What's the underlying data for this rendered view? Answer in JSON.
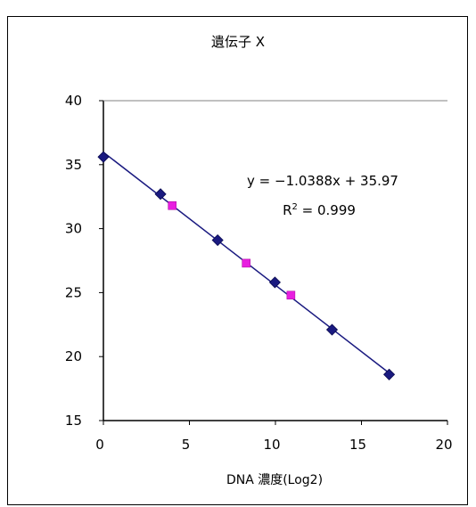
{
  "chart_data": {
    "type": "scatter",
    "title": "遺伝子 X",
    "xlabel": "DNA 濃度(Log2)",
    "ylabel": "",
    "xlim": [
      0,
      20
    ],
    "ylim": [
      15,
      40
    ],
    "xticks": [
      "0",
      "5",
      "10",
      "15",
      "20"
    ],
    "yticks": [
      "15",
      "20",
      "25",
      "30",
      "35",
      "40"
    ],
    "series": [
      {
        "marker": "diamond",
        "color": "#1a1a80",
        "x": [
          0.0,
          3.32,
          6.64,
          9.97,
          13.29,
          16.61
        ],
        "y": [
          35.6,
          32.7,
          29.1,
          25.8,
          22.1,
          18.6
        ]
      },
      {
        "marker": "square",
        "color": "#e81ee0",
        "x": [
          4.0,
          8.3,
          10.9
        ],
        "y": [
          31.8,
          27.3,
          24.8
        ]
      }
    ],
    "trendline": {
      "slope": -1.0388,
      "intercept": 35.97,
      "x_range": [
        0.0,
        16.61
      ],
      "color": "#1a1a80"
    },
    "annotations": {
      "equation": "y = −1.0388x + 35.97",
      "r2_prefix": "R",
      "r2_sup": "2",
      "r2_value": " = 0.999"
    },
    "grid": "top line only"
  }
}
